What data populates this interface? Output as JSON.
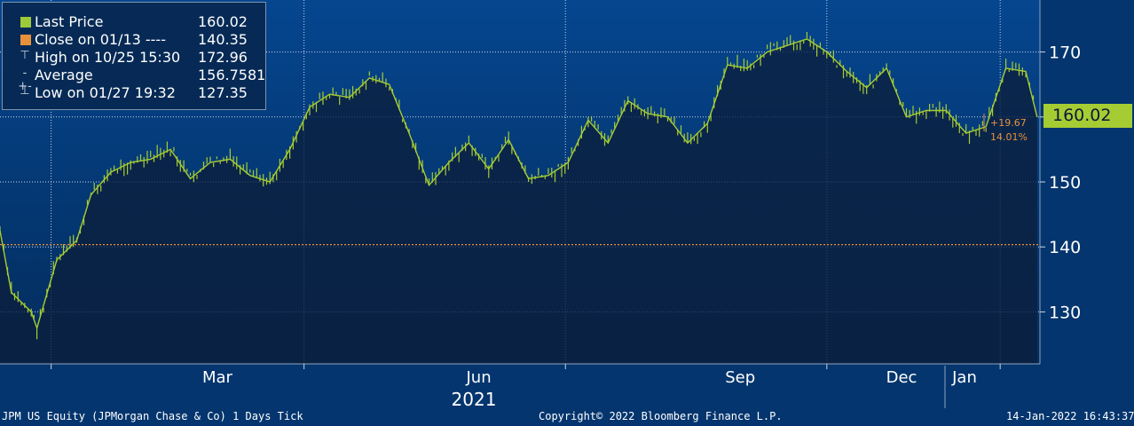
{
  "legend": {
    "items": [
      {
        "label": "Last Price",
        "value": "160.02",
        "color": "#9ec93a",
        "icon": "green-square-swatch"
      },
      {
        "label": "Close on 01/13 ----",
        "value": "140.35",
        "color": "#e8913a",
        "icon": "orange-square-swatch"
      },
      {
        "label": "High on 10/25 15:30",
        "value": "172.96",
        "icon": "high-marker-icon"
      },
      {
        "label": "Average",
        "value": "156.7581",
        "icon": "average-marker-icon"
      },
      {
        "label": "Low on 01/27 19:32",
        "value": "127.35",
        "icon": "low-marker-icon"
      }
    ]
  },
  "last_price_tag": "160.02",
  "change": {
    "abs": "+19.67",
    "pct": "14.01%"
  },
  "footer": {
    "left": "JPM US Equity (JPMorgan Chase & Co) 1 Days  Tick",
    "center": "Copyright© 2022 Bloomberg Finance L.P.",
    "right": "14-Jan-2022 16:43:37"
  },
  "colors": {
    "background": "#04356e",
    "plot_top": "#05468f",
    "plot_bottom": "#042c5c",
    "area_fill": "#0b1f3c",
    "price_line": "#a6cc33",
    "close_line": "#e8913a"
  },
  "chart_data": {
    "type": "line",
    "title": "",
    "series": [
      {
        "name": "Last Price",
        "x": [
          "2021-01-14",
          "2021-01-18",
          "2021-01-25",
          "2021-01-27",
          "2021-02-03",
          "2021-02-10",
          "2021-02-15",
          "2021-02-22",
          "2021-03-01",
          "2021-03-08",
          "2021-03-15",
          "2021-03-22",
          "2021-03-29",
          "2021-04-05",
          "2021-04-12",
          "2021-04-19",
          "2021-04-26",
          "2021-05-03",
          "2021-05-10",
          "2021-05-17",
          "2021-05-24",
          "2021-05-31",
          "2021-06-07",
          "2021-06-14",
          "2021-06-21",
          "2021-06-28",
          "2021-07-05",
          "2021-07-12",
          "2021-07-19",
          "2021-07-26",
          "2021-08-02",
          "2021-08-09",
          "2021-08-16",
          "2021-08-23",
          "2021-08-30",
          "2021-09-06",
          "2021-09-13",
          "2021-09-20",
          "2021-09-27",
          "2021-10-04",
          "2021-10-11",
          "2021-10-18",
          "2021-10-25",
          "2021-11-01",
          "2021-11-08",
          "2021-11-15",
          "2021-11-22",
          "2021-11-29",
          "2021-12-06",
          "2021-12-13",
          "2021-12-20",
          "2021-12-27",
          "2022-01-03",
          "2022-01-10",
          "2022-01-14"
        ],
        "values": [
          142.5,
          133.0,
          130.0,
          127.5,
          138.0,
          141.0,
          148.0,
          151.5,
          153.0,
          153.5,
          155.0,
          150.5,
          153.0,
          153.5,
          151.0,
          150.0,
          155.0,
          161.5,
          163.5,
          163.0,
          166.0,
          165.0,
          157.5,
          149.5,
          153.0,
          156.0,
          152.0,
          156.5,
          150.5,
          151.0,
          153.0,
          159.5,
          156.0,
          162.5,
          160.5,
          160.0,
          156.0,
          159.0,
          168.0,
          167.5,
          170.0,
          171.0,
          172.0,
          170.0,
          167.0,
          164.5,
          167.5,
          160.0,
          161.0,
          161.0,
          157.5,
          158.5,
          167.5,
          167.0,
          160.0
        ]
      }
    ],
    "reference_line": {
      "label": "Close on 01/13",
      "value": 140.35
    },
    "x_tick_labels": [
      "Mar",
      "Jun",
      "Sep",
      "Dec",
      "Jan"
    ],
    "x_group_label": "2021",
    "y_tick_labels": [
      "130",
      "140",
      "150",
      "160",
      "170"
    ],
    "ylim": [
      122,
      178
    ],
    "xlim": [
      "2021-01-14",
      "2022-01-15"
    ],
    "grid": true,
    "legend_position": "top-left",
    "xlabel": "",
    "ylabel": ""
  }
}
